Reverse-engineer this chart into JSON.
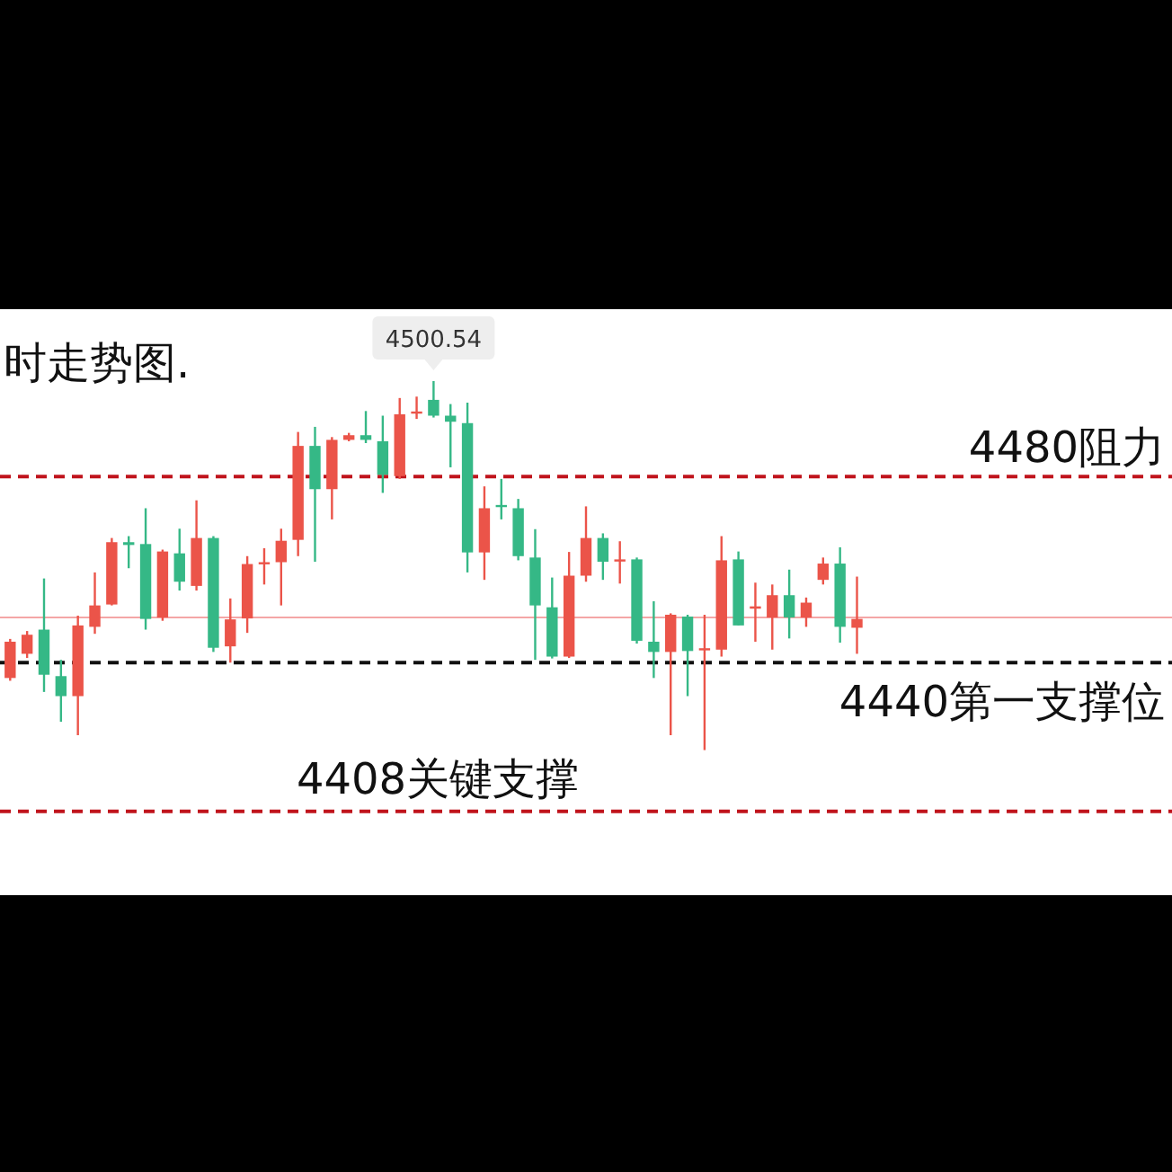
{
  "chart_data": {
    "type": "candlestick",
    "title": "时走势图.",
    "categories": [
      null,
      null,
      null,
      null,
      null,
      null,
      null,
      null,
      null,
      null,
      null,
      null,
      null,
      null,
      null,
      null,
      null,
      null,
      null,
      null,
      null,
      null,
      null,
      null,
      null,
      null,
      null,
      null,
      null,
      null,
      null,
      null,
      null,
      null,
      null,
      null,
      null,
      null,
      null,
      null,
      null,
      null,
      null,
      null,
      null,
      null,
      null,
      null,
      null,
      null,
      null
    ],
    "ohlc": [
      [
        4436.7,
        4445.1,
        4436.1,
        4444.5
      ],
      [
        4441.9,
        4446.8,
        4441.0,
        4446.0
      ],
      [
        4447.1,
        4458.1,
        4433.7,
        4437.4
      ],
      [
        4437.1,
        4440.6,
        4427.3,
        4432.8
      ],
      [
        4432.8,
        4450.1,
        4424.4,
        4448.0
      ],
      [
        4447.7,
        4459.4,
        4446.2,
        4452.3
      ],
      [
        4452.5,
        4466.8,
        4452.3,
        4465.9
      ],
      [
        4465.9,
        4467.2,
        4460.3,
        4465.3
      ],
      [
        4465.5,
        4473.2,
        4447.1,
        4449.4
      ],
      [
        4449.7,
        4464.3,
        4449.0,
        4463.9
      ],
      [
        4463.5,
        4468.8,
        4455.5,
        4457.4
      ],
      [
        4456.5,
        4474.9,
        4455.5,
        4466.8
      ],
      [
        4466.8,
        4467.2,
        4442.3,
        4443.2
      ],
      [
        4443.5,
        4453.8,
        4440.0,
        4449.3
      ],
      [
        4449.5,
        4462.9,
        4446.4,
        4461.2
      ],
      [
        4461.3,
        4464.6,
        4456.8,
        4461.6
      ],
      [
        4461.6,
        4468.8,
        4452.3,
        4466.2
      ],
      [
        4466.4,
        4489.6,
        4462.9,
        4486.6
      ],
      [
        4486.6,
        4490.7,
        4461.7,
        4477.3
      ],
      [
        4477.3,
        4488.5,
        4470.8,
        4487.9
      ],
      [
        4487.9,
        4489.4,
        4487.6,
        4488.9
      ],
      [
        4488.9,
        4494.1,
        4487.2,
        4487.9
      ],
      [
        4487.6,
        4493.1,
        4476.5,
        4480.4
      ],
      [
        4480.1,
        4496.9,
        4479.5,
        4493.4
      ],
      [
        4493.6,
        4497.2,
        4492.4,
        4494.0
      ],
      [
        4496.5,
        4500.54,
        4492.7,
        4493.1
      ],
      [
        4493.1,
        4495.6,
        4482.0,
        4491.8
      ],
      [
        4491.5,
        4495.9,
        4459.4,
        4463.7
      ],
      [
        4463.7,
        4477.9,
        4457.8,
        4473.2
      ],
      [
        4473.9,
        4479.5,
        4470.8,
        4473.6
      ],
      [
        4473.2,
        4475.2,
        4462.0,
        4462.9
      ],
      [
        4462.6,
        4468.7,
        4440.6,
        4452.3
      ],
      [
        4451.9,
        4458.3,
        4440.9,
        4441.3
      ],
      [
        4441.3,
        4463.8,
        4441.0,
        4458.7
      ],
      [
        4458.7,
        4473.6,
        4457.4,
        4466.8
      ],
      [
        4466.8,
        4467.8,
        4457.8,
        4461.7
      ],
      [
        4461.8,
        4466.1,
        4457.0,
        4462.2
      ],
      [
        4462.2,
        4462.6,
        4444.1,
        4444.7
      ],
      [
        4444.5,
        4453.2,
        4436.7,
        4442.3
      ],
      [
        4442.3,
        4450.6,
        4424.4,
        4450.3
      ],
      [
        4449.9,
        4450.3,
        4432.8,
        4442.5
      ],
      [
        4442.7,
        4450.3,
        4421.2,
        4443.1
      ],
      [
        4442.8,
        4467.2,
        4441.3,
        4462.0
      ],
      [
        4462.2,
        4463.9,
        4448.0,
        4448.0
      ],
      [
        4451.6,
        4457.2,
        4444.5,
        4452.1
      ],
      [
        4449.7,
        4456.8,
        4442.8,
        4454.5
      ],
      [
        4454.5,
        4460.0,
        4445.2,
        4449.7
      ],
      [
        4449.7,
        4454.0,
        4447.7,
        4452.9
      ],
      [
        4457.8,
        4462.6,
        4456.8,
        4461.3
      ],
      [
        4461.3,
        4464.8,
        4444.3,
        4447.7
      ],
      [
        4447.5,
        4458.5,
        4441.9,
        4449.4
      ]
    ],
    "colors": [
      "#eb5449",
      "#eb5449",
      "#35b886",
      "#35b886",
      "#eb5449",
      "#eb5449",
      "#eb5449",
      "#35b886",
      "#35b886",
      "#eb5449",
      "#35b886",
      "#eb5449",
      "#35b886",
      "#eb5449",
      "#eb5449",
      "#eb5449",
      "#eb5449",
      "#eb5449",
      "#35b886",
      "#eb5449",
      "#eb5449",
      "#35b886",
      "#35b886",
      "#eb5449",
      "#eb5449",
      "#35b886",
      "#35b886",
      "#35b886",
      "#eb5449",
      "#35b886",
      "#35b886",
      "#35b886",
      "#35b886",
      "#eb5449",
      "#eb5449",
      "#35b886",
      "#eb5449",
      "#35b886",
      "#35b886",
      "#eb5449",
      "#35b886",
      "#eb5449",
      "#eb5449",
      "#35b886",
      "#eb5449",
      "#eb5449",
      "#35b886",
      "#eb5449",
      "#eb5449",
      "#35b886",
      "#eb5449"
    ],
    "ylim": [
      4390,
      4516
    ],
    "ref_lines": [
      {
        "axis": "y",
        "value": 4480,
        "label": "4480阻力",
        "color": "#c0141c",
        "line_style": "dashed"
      },
      {
        "axis": "y",
        "value": 4440,
        "label": "4440第一支撑位",
        "color": "#111111",
        "line_style": "dashed"
      },
      {
        "axis": "y",
        "value": 4408,
        "label": "4408关键支撑",
        "color": "#c0141c",
        "line_style": "dashed"
      },
      {
        "axis": "y",
        "value": 4449.7,
        "color": "#f4a6a6",
        "line_style": "solid"
      }
    ],
    "annotations": [
      {
        "text": "4500.54",
        "y": 4500.54
      }
    ]
  }
}
